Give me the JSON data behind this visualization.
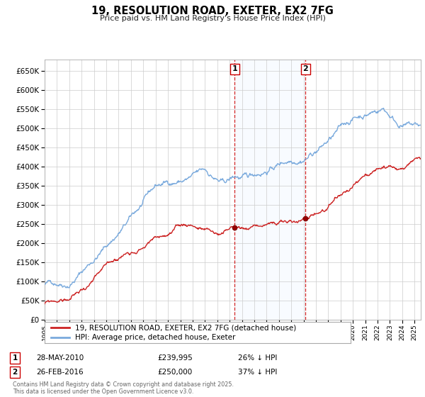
{
  "title": "19, RESOLUTION ROAD, EXETER, EX2 7FG",
  "subtitle": "Price paid vs. HM Land Registry's House Price Index (HPI)",
  "hpi_label": "HPI: Average price, detached house, Exeter",
  "property_label": "19, RESOLUTION ROAD, EXETER, EX2 7FG (detached house)",
  "hpi_color": "#7aaadd",
  "property_color": "#cc2222",
  "vline_color": "#cc0000",
  "shade_color": "#ddeeff",
  "plot_bg": "#ffffff",
  "grid_color": "#cccccc",
  "ylim": [
    0,
    680000
  ],
  "ytick_step": 50000,
  "sale1": {
    "date": "28-MAY-2010",
    "price": 239995,
    "hpi_pct": "26% ↓ HPI",
    "label": "1",
    "year": 2010.41
  },
  "sale2": {
    "date": "26-FEB-2016",
    "price": 250000,
    "hpi_pct": "37% ↓ HPI",
    "label": "2",
    "year": 2016.15
  },
  "copyright": "Contains HM Land Registry data © Crown copyright and database right 2025.\nThis data is licensed under the Open Government Licence v3.0.",
  "xmin": 1995,
  "xmax": 2025.5
}
